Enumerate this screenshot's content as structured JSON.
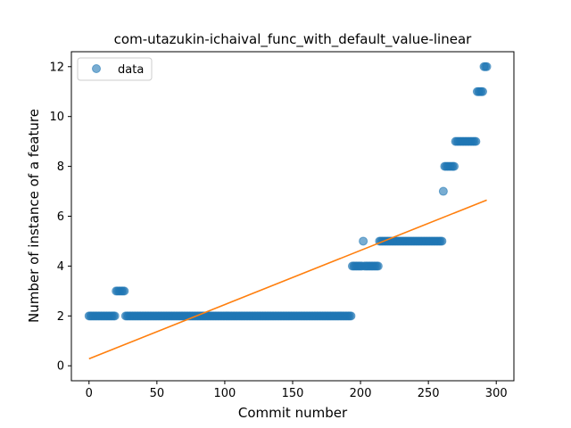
{
  "chart_data": {
    "type": "scatter",
    "title": "com-utazukin-ichaival_func_with_default_value-linear",
    "xlabel": "Commit number",
    "ylabel": "Number of instance of a feature",
    "xlim": [
      -13,
      313
    ],
    "ylim": [
      -0.6,
      12.6
    ],
    "xticks": [
      0,
      50,
      100,
      150,
      200,
      250,
      300
    ],
    "yticks": [
      0,
      2,
      4,
      6,
      8,
      10,
      12
    ],
    "grid": false,
    "legend": {
      "placement": "top-left",
      "entries": [
        "data"
      ]
    },
    "series": [
      {
        "name": "data",
        "kind": "points",
        "color": "#1f77b4",
        "segments": [
          {
            "x_start": 0,
            "x_end": 19,
            "y": 2
          },
          {
            "x_start": 20,
            "x_end": 26,
            "y": 3
          },
          {
            "x_start": 27,
            "x_end": 193,
            "y": 2
          },
          {
            "x_start": 194,
            "x_end": 201,
            "y": 4
          },
          {
            "x_start": 202,
            "x_end": 202,
            "y": 5
          },
          {
            "x_start": 203,
            "x_end": 213,
            "y": 4
          },
          {
            "x_start": 214,
            "x_end": 260,
            "y": 5
          },
          {
            "x_start": 261,
            "x_end": 261,
            "y": 7
          },
          {
            "x_start": 262,
            "x_end": 269,
            "y": 8
          },
          {
            "x_start": 270,
            "x_end": 285,
            "y": 9
          },
          {
            "x_start": 286,
            "x_end": 290,
            "y": 11
          },
          {
            "x_start": 291,
            "x_end": 293,
            "y": 12
          }
        ]
      },
      {
        "name": "",
        "kind": "line",
        "color": "#ff7f0e",
        "x": [
          0,
          293
        ],
        "y": [
          0.28,
          6.65
        ]
      }
    ]
  }
}
